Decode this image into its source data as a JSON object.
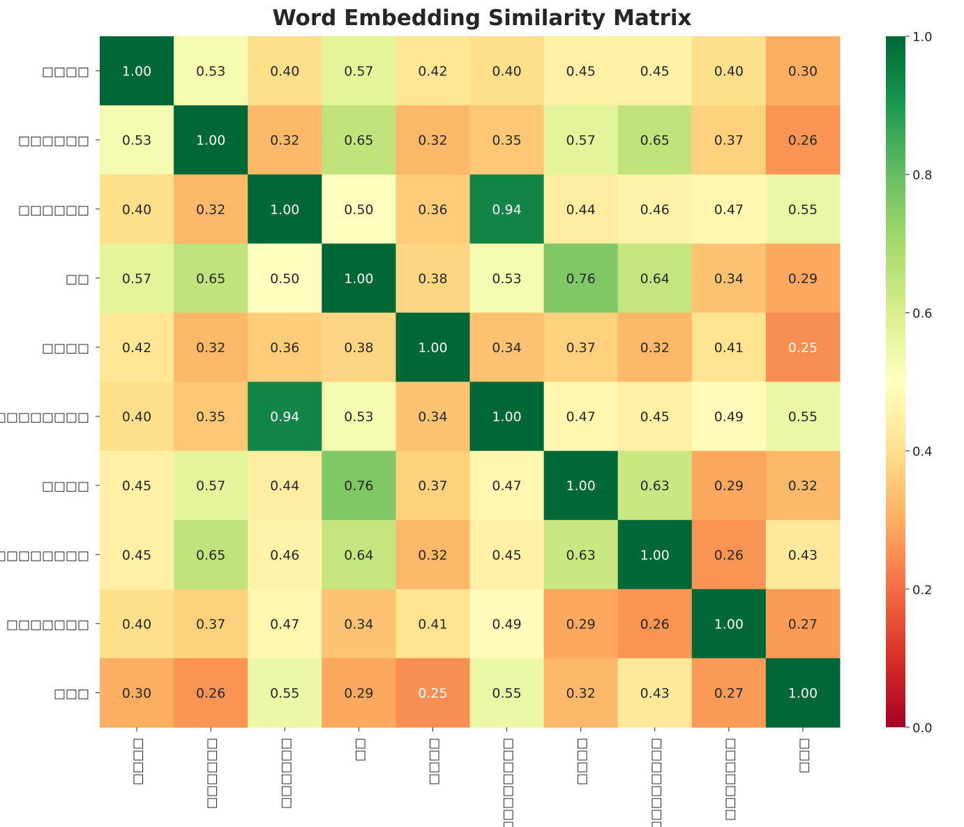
{
  "chart_data": {
    "type": "heatmap",
    "title": "Word Embedding Similarity Matrix",
    "row_labels": [
      "□□□□",
      "□□□□□□",
      "□□□□□□",
      "□□",
      "□□□□",
      "□□□□□□□□□",
      "□□□□",
      "□□□□□□□□□",
      "□□□□□□□",
      "□□□"
    ],
    "col_labels": [
      "□□□□",
      "□□□□□□",
      "□□□□□□",
      "□□",
      "□□□□",
      "□□□□□□□□□",
      "□□□□",
      "□□□□□□□□□",
      "□□□□□□□",
      "□□□"
    ],
    "values": [
      [
        1.0,
        0.53,
        0.4,
        0.57,
        0.42,
        0.4,
        0.45,
        0.45,
        0.4,
        0.3
      ],
      [
        0.53,
        1.0,
        0.32,
        0.65,
        0.32,
        0.35,
        0.57,
        0.65,
        0.37,
        0.26
      ],
      [
        0.4,
        0.32,
        1.0,
        0.5,
        0.36,
        0.94,
        0.44,
        0.46,
        0.47,
        0.55
      ],
      [
        0.57,
        0.65,
        0.5,
        1.0,
        0.38,
        0.53,
        0.76,
        0.64,
        0.34,
        0.29
      ],
      [
        0.42,
        0.32,
        0.36,
        0.38,
        1.0,
        0.34,
        0.37,
        0.32,
        0.41,
        0.25
      ],
      [
        0.4,
        0.35,
        0.94,
        0.53,
        0.34,
        1.0,
        0.47,
        0.45,
        0.49,
        0.55
      ],
      [
        0.45,
        0.57,
        0.44,
        0.76,
        0.37,
        0.47,
        1.0,
        0.63,
        0.29,
        0.32
      ],
      [
        0.45,
        0.65,
        0.46,
        0.64,
        0.32,
        0.45,
        0.63,
        1.0,
        0.26,
        0.43
      ],
      [
        0.4,
        0.37,
        0.47,
        0.34,
        0.41,
        0.49,
        0.29,
        0.26,
        1.0,
        0.27
      ],
      [
        0.3,
        0.26,
        0.55,
        0.29,
        0.25,
        0.55,
        0.32,
        0.43,
        0.27,
        1.0
      ]
    ],
    "colormap": "RdYlGn",
    "vmin": 0.0,
    "vmax": 1.0,
    "annotation_format": "0.00",
    "colorbar": {
      "ticks": [
        "0.0",
        "0.2",
        "0.4",
        "0.6",
        "0.8",
        "1.0"
      ],
      "placement": "right"
    },
    "grid": false
  }
}
